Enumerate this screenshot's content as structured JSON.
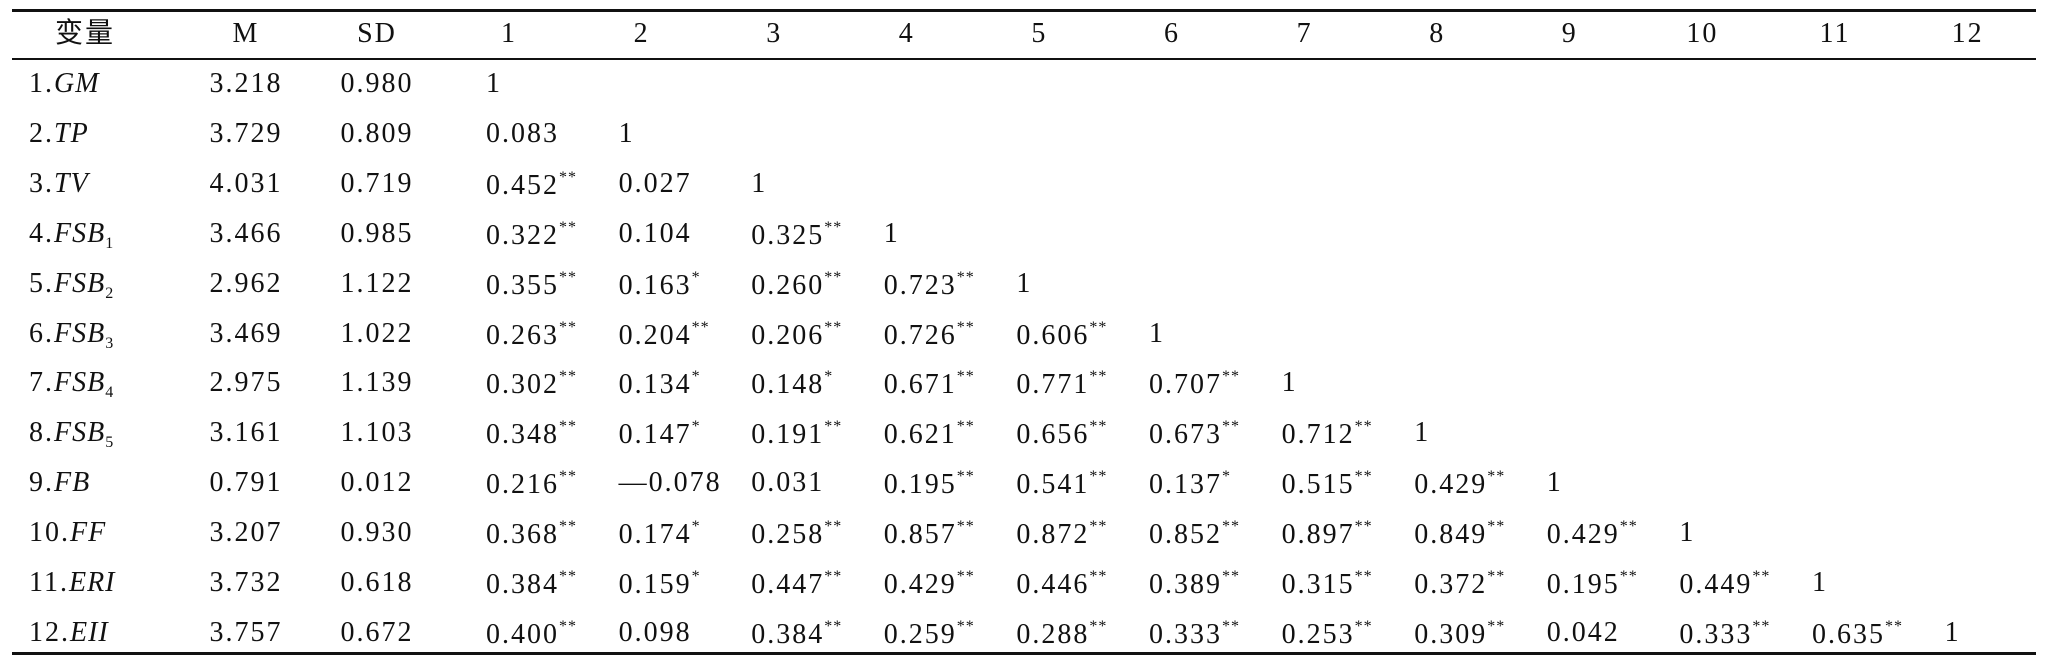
{
  "table": {
    "header": [
      "变量",
      "M",
      "SD",
      "1",
      "2",
      "3",
      "4",
      "5",
      "6",
      "7",
      "8",
      "9",
      "10",
      "11",
      "12"
    ],
    "rows": [
      {
        "label": {
          "num": "1.",
          "name": "GM"
        },
        "m": "3.218",
        "sd": "0.980",
        "cells": [
          [
            "1"
          ]
        ]
      },
      {
        "label": {
          "num": "2.",
          "name": "TP"
        },
        "m": "3.729",
        "sd": "0.809",
        "cells": [
          [
            "0.083"
          ],
          [
            "1"
          ]
        ]
      },
      {
        "label": {
          "num": "3.",
          "name": "TV"
        },
        "m": "4.031",
        "sd": "0.719",
        "cells": [
          [
            "0.452",
            "**"
          ],
          [
            "0.027"
          ],
          [
            "1"
          ]
        ]
      },
      {
        "label": {
          "num": "4.",
          "name": "FSB",
          "sub": "1"
        },
        "m": "3.466",
        "sd": "0.985",
        "cells": [
          [
            "0.322",
            "**"
          ],
          [
            "0.104"
          ],
          [
            "0.325",
            "**"
          ],
          [
            "1"
          ]
        ]
      },
      {
        "label": {
          "num": "5.",
          "name": "FSB",
          "sub": "2"
        },
        "m": "2.962",
        "sd": "1.122",
        "cells": [
          [
            "0.355",
            "**"
          ],
          [
            "0.163",
            "*"
          ],
          [
            "0.260",
            "**"
          ],
          [
            "0.723",
            "**"
          ],
          [
            "1"
          ]
        ]
      },
      {
        "label": {
          "num": "6.",
          "name": "FSB",
          "sub": "3"
        },
        "m": "3.469",
        "sd": "1.022",
        "cells": [
          [
            "0.263",
            "**"
          ],
          [
            "0.204",
            "**"
          ],
          [
            "0.206",
            "**"
          ],
          [
            "0.726",
            "**"
          ],
          [
            "0.606",
            "**"
          ],
          [
            "1"
          ]
        ]
      },
      {
        "label": {
          "num": "7.",
          "name": "FSB",
          "sub": "4"
        },
        "m": "2.975",
        "sd": "1.139",
        "cells": [
          [
            "0.302",
            "**"
          ],
          [
            "0.134",
            "*"
          ],
          [
            "0.148",
            "*"
          ],
          [
            "0.671",
            "**"
          ],
          [
            "0.771",
            "**"
          ],
          [
            "0.707",
            "**"
          ],
          [
            "1"
          ]
        ]
      },
      {
        "label": {
          "num": "8.",
          "name": "FSB",
          "sub": "5"
        },
        "m": "3.161",
        "sd": "1.103",
        "cells": [
          [
            "0.348",
            "**"
          ],
          [
            "0.147",
            "*"
          ],
          [
            "0.191",
            "**"
          ],
          [
            "0.621",
            "**"
          ],
          [
            "0.656",
            "**"
          ],
          [
            "0.673",
            "**"
          ],
          [
            "0.712",
            "**"
          ],
          [
            "1"
          ]
        ]
      },
      {
        "label": {
          "num": "9.",
          "name": "FB"
        },
        "m": "0.791",
        "sd": "0.012",
        "cells": [
          [
            "0.216",
            "**"
          ],
          [
            "—0.078"
          ],
          [
            "0.031"
          ],
          [
            "0.195",
            "**"
          ],
          [
            "0.541",
            "**"
          ],
          [
            "0.137",
            "*"
          ],
          [
            "0.515",
            "**"
          ],
          [
            "0.429",
            "**"
          ],
          [
            "1"
          ]
        ]
      },
      {
        "label": {
          "num": "10.",
          "name": "FF"
        },
        "m": "3.207",
        "sd": "0.930",
        "cells": [
          [
            "0.368",
            "**"
          ],
          [
            "0.174",
            "*"
          ],
          [
            "0.258",
            "**"
          ],
          [
            "0.857",
            "**"
          ],
          [
            "0.872",
            "**"
          ],
          [
            "0.852",
            "**"
          ],
          [
            "0.897",
            "**"
          ],
          [
            "0.849",
            "**"
          ],
          [
            "0.429",
            "**"
          ],
          [
            "1"
          ]
        ]
      },
      {
        "label": {
          "num": "11.",
          "name": "ERI"
        },
        "m": "3.732",
        "sd": "0.618",
        "cells": [
          [
            "0.384",
            "**"
          ],
          [
            "0.159",
            "*"
          ],
          [
            "0.447",
            "**"
          ],
          [
            "0.429",
            "**"
          ],
          [
            "0.446",
            "**"
          ],
          [
            "0.389",
            "**"
          ],
          [
            "0.315",
            "**"
          ],
          [
            "0.372",
            "**"
          ],
          [
            "0.195",
            "**"
          ],
          [
            "0.449",
            "**"
          ],
          [
            "1"
          ]
        ]
      },
      {
        "label": {
          "num": "12.",
          "name": "EII"
        },
        "m": "3.757",
        "sd": "0.672",
        "cells": [
          [
            "0.400",
            "**"
          ],
          [
            "0.098"
          ],
          [
            "0.384",
            "**"
          ],
          [
            "0.259",
            "**"
          ],
          [
            "0.288",
            "**"
          ],
          [
            "0.333",
            "**"
          ],
          [
            "0.253",
            "**"
          ],
          [
            "0.309",
            "**"
          ],
          [
            "0.042"
          ],
          [
            "0.333",
            "**"
          ],
          [
            "0.635",
            "**"
          ],
          [
            "1"
          ]
        ]
      }
    ]
  }
}
